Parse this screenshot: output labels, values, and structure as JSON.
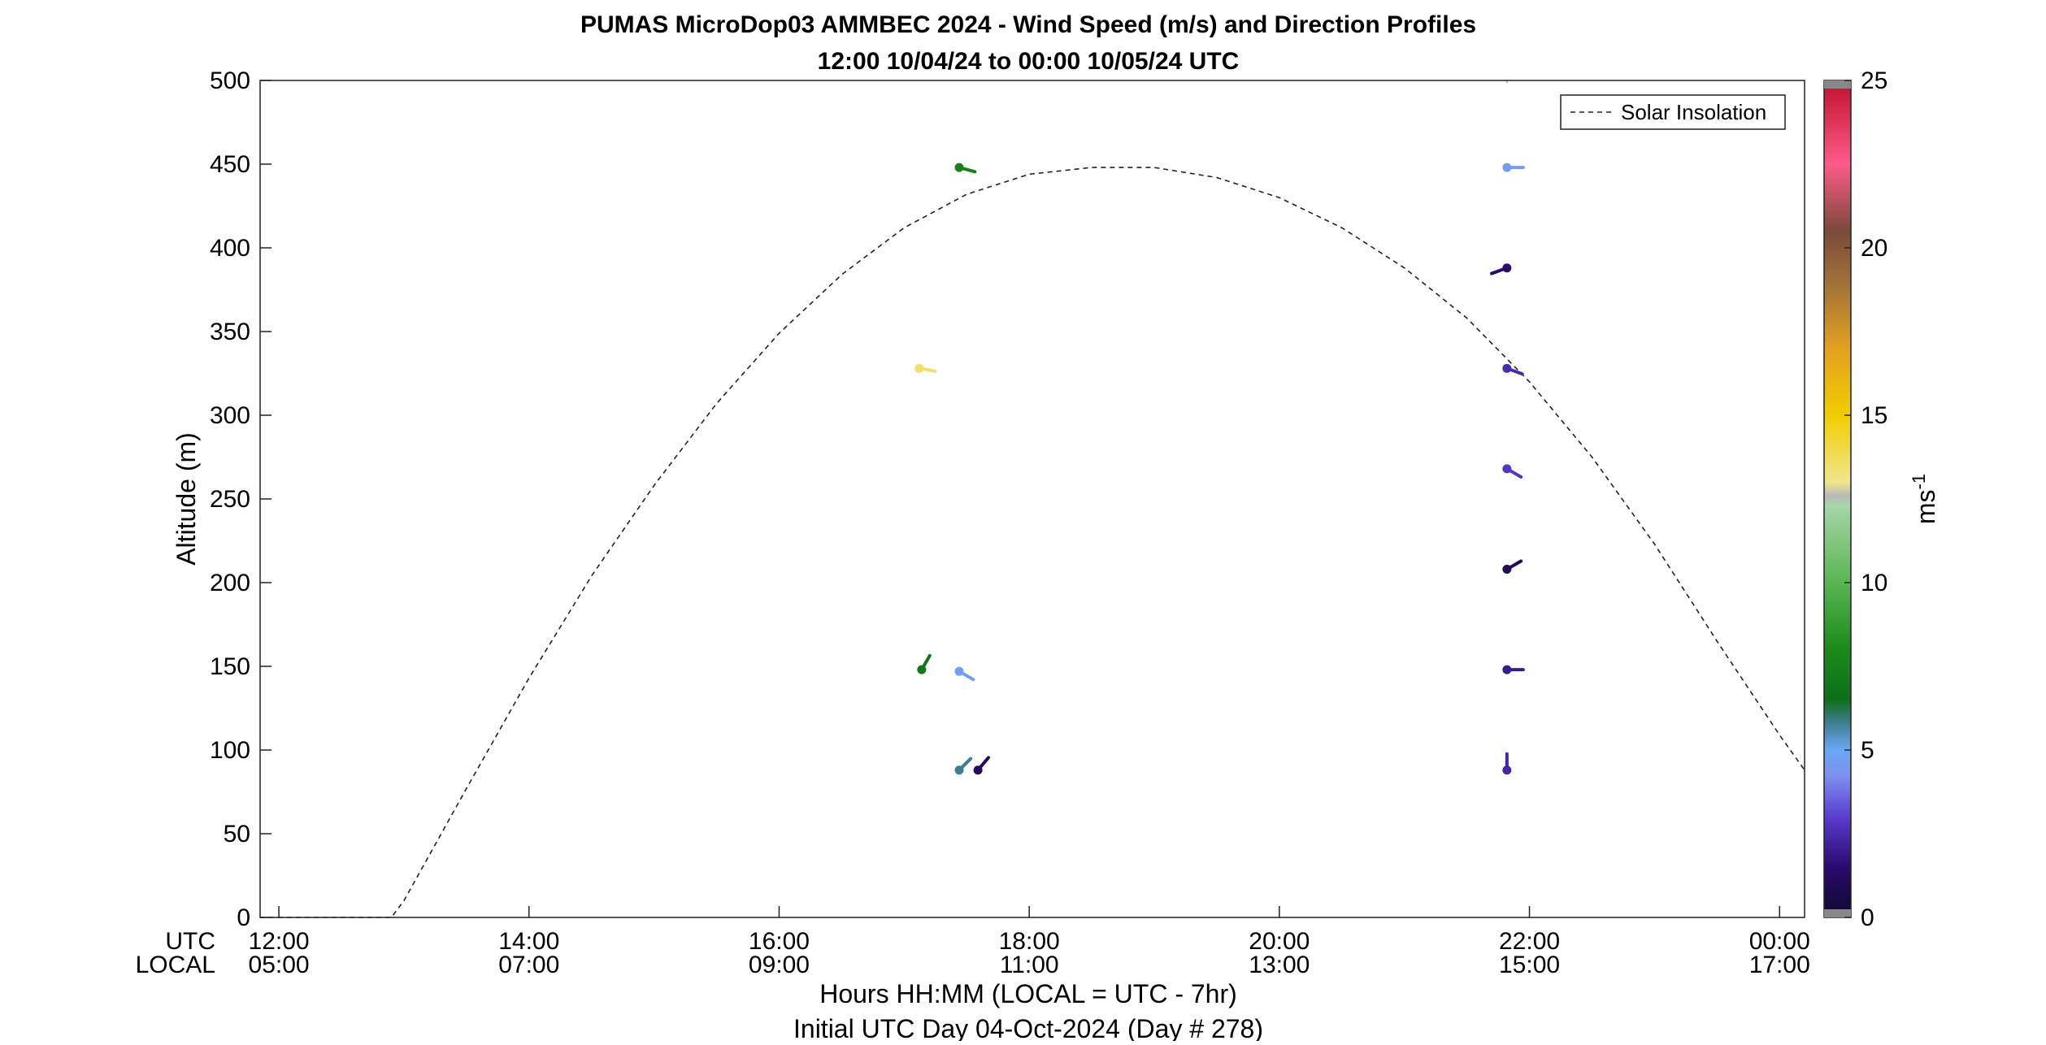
{
  "chart_data": {
    "type": "scatter",
    "title": "PUMAS MicroDop03 AMMBEC 2024 - Wind Speed (m/s) and Direction Profiles",
    "subtitle": "12:00 10/04/24 to 00:00 10/05/24  UTC",
    "xlabel": "Hours HH:MM  (LOCAL = UTC - 7hr)",
    "xlabel2": "Initial UTC Day 04-Oct-2024 (Day # 278)",
    "ylabel": "Altitude (m)",
    "xlim": [
      11.85,
      24.2
    ],
    "ylim": [
      0,
      500
    ],
    "x_axis_names": {
      "utc": "UTC",
      "local": "LOCAL"
    },
    "x_ticks": [
      {
        "x": 12,
        "utc": "12:00",
        "local": "05:00"
      },
      {
        "x": 14,
        "utc": "14:00",
        "local": "07:00"
      },
      {
        "x": 16,
        "utc": "16:00",
        "local": "09:00"
      },
      {
        "x": 18,
        "utc": "18:00",
        "local": "11:00"
      },
      {
        "x": 20,
        "utc": "20:00",
        "local": "13:00"
      },
      {
        "x": 22,
        "utc": "22:00",
        "local": "15:00"
      },
      {
        "x": 24,
        "utc": "00:00",
        "local": "17:00"
      }
    ],
    "y_ticks": [
      0,
      50,
      100,
      150,
      200,
      250,
      300,
      350,
      400,
      450,
      500
    ],
    "legend": {
      "entries": [
        "Solar Insolation"
      ],
      "placement": "top-right"
    },
    "colorbar": {
      "label": "ms",
      "label_sup": "-1",
      "range": [
        0,
        25
      ],
      "ticks": [
        0,
        5,
        10,
        15,
        20,
        25
      ],
      "stops": [
        {
          "v": 0,
          "color": "#0d0a2e"
        },
        {
          "v": 1.5,
          "color": "#2a0a6e"
        },
        {
          "v": 3,
          "color": "#5a3ccf"
        },
        {
          "v": 4.2,
          "color": "#7e8ef0"
        },
        {
          "v": 5,
          "color": "#6aa8f5"
        },
        {
          "v": 5.8,
          "color": "#3f7e90"
        },
        {
          "v": 6.5,
          "color": "#0f6e1a"
        },
        {
          "v": 8,
          "color": "#1a8a1a"
        },
        {
          "v": 10,
          "color": "#5ab552"
        },
        {
          "v": 12.3,
          "color": "#a6d6a8"
        },
        {
          "v": 12.6,
          "color": "#b8b8b8"
        },
        {
          "v": 13,
          "color": "#f0e68c"
        },
        {
          "v": 15,
          "color": "#f2cd00"
        },
        {
          "v": 17,
          "color": "#e2a020"
        },
        {
          "v": 19,
          "color": "#a0703a"
        },
        {
          "v": 20.5,
          "color": "#7a4a3a"
        },
        {
          "v": 22.5,
          "color": "#ff5a8a"
        },
        {
          "v": 25,
          "color": "#c0102a"
        }
      ]
    },
    "solar_insolation": {
      "style": "dashed",
      "color": "#222222",
      "points": [
        [
          11.85,
          0
        ],
        [
          12.9,
          0
        ],
        [
          13.0,
          10
        ],
        [
          13.5,
          77
        ],
        [
          14.0,
          143
        ],
        [
          14.5,
          204
        ],
        [
          15.0,
          258
        ],
        [
          15.5,
          307
        ],
        [
          16.0,
          349
        ],
        [
          16.5,
          384
        ],
        [
          17.0,
          412
        ],
        [
          17.5,
          432
        ],
        [
          18.0,
          444
        ],
        [
          18.5,
          448
        ],
        [
          19.0,
          448
        ],
        [
          19.5,
          442
        ],
        [
          20.0,
          430
        ],
        [
          20.5,
          412
        ],
        [
          21.0,
          388
        ],
        [
          21.5,
          358
        ],
        [
          22.0,
          320
        ],
        [
          22.5,
          275
        ],
        [
          23.0,
          223
        ],
        [
          23.5,
          165
        ],
        [
          24.0,
          109
        ],
        [
          24.2,
          88
        ]
      ]
    },
    "wind_barbs": [
      {
        "time": 17.44,
        "altitude": 448,
        "speed": 7.5,
        "angle": 105
      },
      {
        "time": 17.12,
        "altitude": 328,
        "speed": 13.5,
        "angle": 100
      },
      {
        "time": 17.14,
        "altitude": 148,
        "speed": 7.0,
        "angle": 30
      },
      {
        "time": 17.44,
        "altitude": 147,
        "speed": 4.8,
        "angle": 120
      },
      {
        "time": 17.44,
        "altitude": 88,
        "speed": 5.8,
        "angle": 45
      },
      {
        "time": 17.59,
        "altitude": 88,
        "speed": 1.2,
        "angle": 40
      },
      {
        "time": 21.82,
        "altitude": 448,
        "speed": 4.7,
        "angle": 90
      },
      {
        "time": 21.82,
        "altitude": 388,
        "speed": 1.5,
        "angle": 250
      },
      {
        "time": 21.82,
        "altitude": 328,
        "speed": 2.5,
        "angle": 110
      },
      {
        "time": 21.82,
        "altitude": 268,
        "speed": 2.8,
        "angle": 120
      },
      {
        "time": 21.82,
        "altitude": 208,
        "speed": 1.0,
        "angle": 60
      },
      {
        "time": 21.82,
        "altitude": 148,
        "speed": 2.0,
        "angle": 90
      },
      {
        "time": 21.82,
        "altitude": 88,
        "speed": 2.3,
        "angle": 0
      }
    ]
  }
}
